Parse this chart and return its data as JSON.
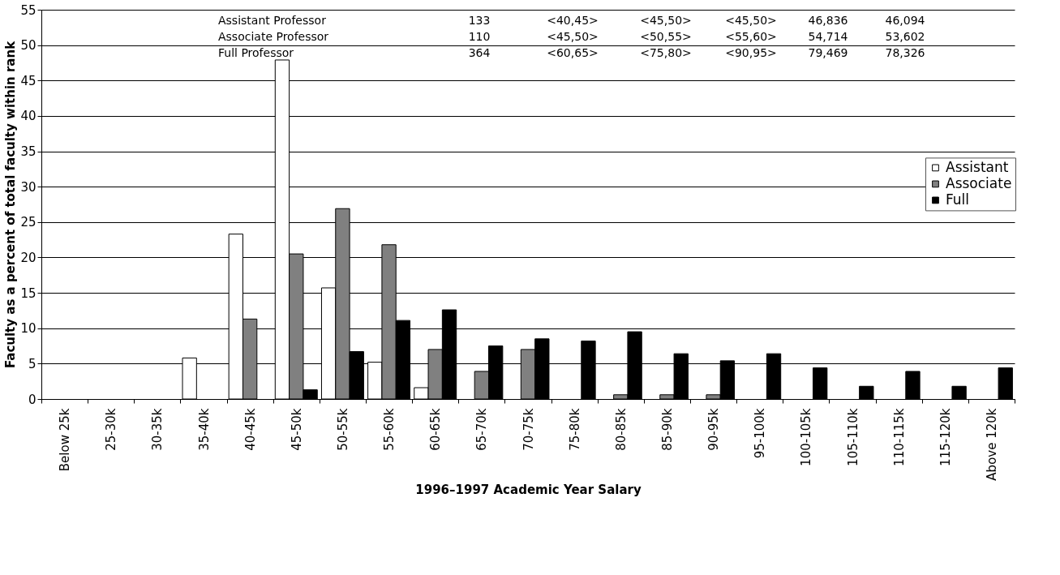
{
  "chart_data": {
    "type": "bar",
    "xlabel": "1996–1997 Academic Year Salary",
    "ylabel": "Faculty as a percent of total faculty within rank",
    "categories": [
      "Below 25k",
      "25-30k",
      "30-35k",
      "35-40k",
      "40-45k",
      "45-50k",
      "50-55k",
      "55-60k",
      "60-65k",
      "65-70k",
      "70-75k",
      "75-80k",
      "80-85k",
      "85-90k",
      "90-95k",
      "95-100k",
      "100-105k",
      "105-110k",
      "110-115k",
      "115-120k",
      "Above 120k"
    ],
    "series": [
      {
        "name": "Assistant",
        "color": "#ffffff",
        "values": [
          0,
          0,
          0,
          5.8,
          23.3,
          47.9,
          15.7,
          5.2,
          1.6,
          0,
          0,
          0,
          0,
          0,
          0,
          0,
          0,
          0,
          0,
          0,
          0
        ]
      },
      {
        "name": "Associate",
        "color": "#808080",
        "values": [
          0,
          0,
          0,
          0,
          11.3,
          20.5,
          26.9,
          21.8,
          7.0,
          3.9,
          7.0,
          0,
          0.6,
          0.6,
          0.6,
          0,
          0,
          0,
          0,
          0,
          0
        ]
      },
      {
        "name": "Full",
        "color": "#000000",
        "values": [
          0,
          0,
          0,
          0,
          0,
          1.3,
          6.7,
          11.1,
          12.6,
          7.5,
          8.5,
          8.2,
          9.5,
          6.4,
          5.4,
          6.4,
          4.4,
          1.8,
          3.9,
          1.8,
          4.4
        ]
      }
    ],
    "ylim": [
      0,
      55
    ],
    "yticks": [
      0,
      5,
      10,
      15,
      20,
      25,
      30,
      35,
      40,
      45,
      50,
      55
    ],
    "grid": "y",
    "legend": "right",
    "annotations": [
      "Assistant Professor",
      "133",
      "<40,45>",
      "<45,50>",
      "<45,50>",
      "46,836",
      "46,094",
      "Associate Professor",
      "110",
      "<45,50>",
      "<50,55>",
      "<55,60>",
      "54,714",
      "53,602",
      "Full Professor",
      "364",
      "<60,65>",
      "<75,80>",
      "<90,95>",
      "79,469",
      "78,326"
    ]
  }
}
